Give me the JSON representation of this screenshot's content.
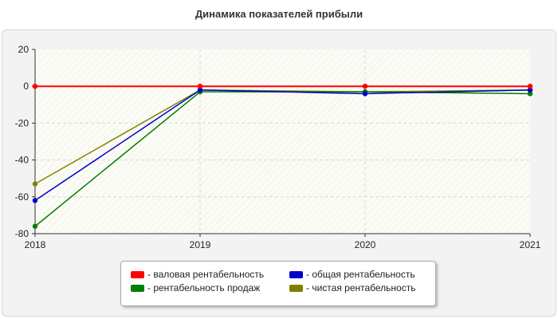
{
  "chart_data": {
    "type": "line",
    "title": "Динамика показателей прибыли",
    "x": [
      "2018",
      "2019",
      "2020",
      "2021"
    ],
    "ylim": [
      -80,
      20
    ],
    "yticks": [
      "20",
      "0",
      "-20",
      "-40",
      "-60",
      "-80"
    ],
    "grid": true,
    "legend_position": "bottom",
    "series": [
      {
        "name": "- валовая рентабельность",
        "color": "#ff0000",
        "values": [
          0,
          0,
          0,
          0
        ]
      },
      {
        "name": "- общая рентабельность",
        "color": "#0000cc",
        "values": [
          -62,
          -2,
          -4,
          -2
        ]
      },
      {
        "name": "- рентабельность продаж",
        "color": "#008000",
        "values": [
          -76,
          -3,
          -3,
          -4
        ]
      },
      {
        "name": "- чистая рентабельность",
        "color": "#808000",
        "values": [
          -53,
          -2,
          -3,
          -2
        ]
      }
    ]
  }
}
